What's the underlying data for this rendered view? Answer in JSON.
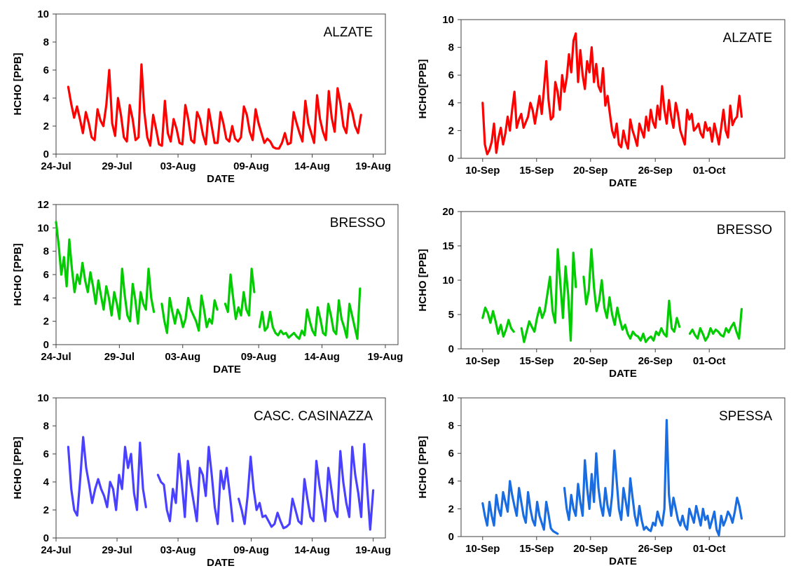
{
  "chart_data": [
    {
      "type": "line",
      "site": "ALZATE",
      "color": "#ff0000",
      "xlabel": "DATE",
      "ylabel": "HCHO [PPB]",
      "ylim": [
        0,
        10
      ],
      "yticks": [
        0,
        2,
        4,
        6,
        8,
        10
      ],
      "xlim": [
        "2010-07-24",
        "2010-08-20"
      ],
      "xticks": [
        "24-Jul",
        "29-Jul",
        "03-Aug",
        "09-Aug",
        "14-Aug",
        "19-Aug"
      ],
      "x_start": "2010-07-25",
      "x_end": "2010-08-18",
      "values": [
        4.8,
        3.6,
        2.6,
        3.4,
        2.5,
        1.5,
        3.0,
        2.2,
        1.2,
        1.0,
        3.2,
        2.4,
        2.0,
        3.5,
        6.0,
        2.2,
        1.3,
        4.0,
        2.8,
        1.2,
        0.9,
        3.5,
        2.5,
        1.0,
        1.2,
        6.4,
        3.0,
        1.2,
        0.6,
        2.8,
        1.8,
        0.7,
        0.6,
        3.8,
        1.5,
        0.9,
        2.5,
        1.8,
        0.8,
        0.7,
        3.5,
        2.5,
        1.0,
        0.8,
        3.0,
        2.5,
        1.4,
        0.7,
        3.2,
        2.0,
        0.8,
        0.8,
        3.0,
        2.2,
        1.1,
        0.9,
        2.0,
        1.1,
        0.9,
        1.2,
        3.4,
        2.8,
        1.6,
        1.0,
        3.2,
        2.2,
        1.5,
        0.8,
        1.1,
        0.9,
        0.5,
        0.4,
        0.4,
        0.8,
        1.5,
        0.7,
        0.8,
        3.0,
        2.2,
        1.5,
        0.9,
        3.8,
        2.2,
        1.5,
        0.8,
        4.2,
        2.5,
        1.6,
        1.0,
        4.5,
        2.6,
        1.6,
        4.7,
        3.6,
        2.0,
        1.5,
        3.6,
        3.0,
        2.0,
        1.5,
        2.8
      ]
    },
    {
      "type": "line",
      "site": "ALZATE",
      "color": "#ff0000",
      "xlabel": "DATE",
      "ylabel": "HCHO[PPB]",
      "ylim": [
        0,
        10
      ],
      "yticks": [
        0,
        2,
        4,
        6,
        8,
        10
      ],
      "xlim": [
        "2010-09-08",
        "2010-10-08"
      ],
      "xticks": [
        "10-Sep",
        "15-Sep",
        "20-Sep",
        "26-Sep",
        "01-Oct"
      ],
      "x_start": "2010-09-10",
      "x_end": "2010-10-04",
      "values": [
        4.0,
        1.0,
        0.3,
        0.6,
        1.2,
        2.5,
        0.4,
        1.5,
        2.2,
        1.0,
        1.8,
        3.0,
        2.0,
        3.5,
        4.8,
        2.2,
        2.8,
        3.2,
        2.2,
        2.6,
        3.0,
        4.0,
        3.5,
        2.5,
        3.5,
        4.5,
        3.2,
        5.0,
        7.0,
        4.2,
        2.8,
        3.0,
        5.5,
        4.8,
        3.5,
        6.0,
        4.8,
        5.8,
        7.5,
        6.2,
        8.5,
        9.0,
        5.5,
        7.8,
        6.0,
        5.0,
        7.0,
        6.2,
        8.0,
        5.5,
        6.8,
        5.2,
        4.8,
        6.5,
        3.8,
        4.5,
        3.2,
        2.0,
        1.5,
        2.5,
        1.0,
        0.8,
        2.0,
        1.2,
        0.7,
        2.8,
        2.0,
        1.5,
        0.9,
        2.5,
        2.0,
        1.5,
        3.0,
        2.0,
        3.5,
        2.6,
        2.2,
        3.8,
        2.8,
        5.2,
        3.5,
        2.5,
        4.2,
        3.0,
        2.2,
        4.0,
        3.2,
        2.0,
        1.5,
        1.0,
        3.5,
        2.8,
        3.2,
        2.0,
        2.2,
        2.5,
        1.8,
        1.5,
        2.6,
        2.0,
        2.2,
        1.2,
        2.5,
        1.8,
        1.0,
        2.2,
        3.5,
        2.0,
        1.5,
        3.8,
        2.4,
        2.8,
        3.0,
        4.5,
        3.0
      ]
    },
    {
      "type": "line",
      "site": "BRESSO",
      "color": "#00cc00",
      "xlabel": "DATE",
      "ylabel": "HCHO [PPB]",
      "ylim": [
        0,
        12
      ],
      "yticks": [
        0,
        2,
        4,
        6,
        8,
        10,
        12
      ],
      "xlim": [
        "2010-07-24",
        "2010-08-20"
      ],
      "xticks": [
        "24-Jul",
        "29-Jul",
        "03-Aug",
        "09-Aug",
        "14-Aug",
        "19-Aug"
      ],
      "x_start": "2010-07-24",
      "x_end": "2010-08-17",
      "values": [
        10.5,
        8.5,
        6.0,
        7.5,
        5.0,
        9.0,
        6.5,
        4.5,
        6.0,
        5.2,
        7.0,
        5.5,
        4.5,
        6.2,
        5.0,
        3.5,
        5.5,
        4.2,
        3.0,
        5.0,
        4.0,
        2.5,
        4.5,
        3.5,
        2.2,
        6.5,
        4.2,
        2.5,
        2.0,
        5.2,
        3.8,
        1.8,
        4.5,
        3.5,
        3.0,
        6.5,
        4.0,
        2.8,
        null,
        null,
        3.5,
        2.0,
        1.0,
        4.0,
        2.8,
        1.8,
        3.0,
        2.5,
        1.5,
        2.2,
        4.0,
        3.0,
        2.5,
        2.0,
        1.2,
        4.2,
        3.0,
        1.5,
        2.2,
        1.8,
        3.8,
        3.0,
        null,
        null,
        3.5,
        2.8,
        6.0,
        4.0,
        2.2,
        3.2,
        2.5,
        4.5,
        3.0,
        2.5,
        6.5,
        4.5,
        null,
        1.5,
        2.8,
        1.2,
        1.5,
        2.8,
        1.5,
        1.0,
        0.8,
        1.2,
        0.9,
        1.0,
        0.6,
        0.8,
        1.0,
        0.7,
        0.5,
        1.2,
        0.8,
        3.0,
        2.0,
        1.2,
        0.8,
        3.2,
        2.2,
        1.0,
        0.8,
        3.5,
        2.5,
        1.2,
        0.9,
        3.8,
        2.2,
        1.5,
        0.6,
        3.5,
        2.5,
        1.5,
        0.5,
        4.8
      ]
    },
    {
      "type": "line",
      "site": "BRESSO",
      "color": "#00cc00",
      "xlabel": "DATE",
      "ylabel": "HCHO [PPB]",
      "ylim": [
        0,
        20
      ],
      "yticks": [
        0,
        5,
        10,
        15,
        20
      ],
      "xlim": [
        "2010-09-08",
        "2010-10-08"
      ],
      "xticks": [
        "10-Sep",
        "15-Sep",
        "20-Sep",
        "26-Sep",
        "01-Oct"
      ],
      "x_start": "2010-09-10",
      "x_end": "2010-10-04",
      "values": [
        4.5,
        6.0,
        5.2,
        3.8,
        5.5,
        4.0,
        2.2,
        3.5,
        1.8,
        2.8,
        4.2,
        3.0,
        2.5,
        null,
        null,
        3.0,
        1.0,
        2.5,
        4.0,
        3.2,
        2.5,
        4.5,
        6.0,
        4.5,
        5.5,
        8.0,
        10.5,
        5.5,
        3.8,
        14.5,
        9.5,
        4.5,
        12.0,
        8.0,
        1.2,
        14.0,
        9.0,
        null,
        null,
        10.5,
        6.5,
        8.5,
        14.5,
        9.0,
        5.5,
        7.0,
        10.0,
        6.0,
        4.5,
        7.5,
        5.0,
        3.5,
        6.0,
        4.2,
        2.8,
        3.5,
        2.2,
        1.5,
        2.5,
        2.0,
        1.8,
        1.2,
        2.2,
        1.0,
        1.5,
        1.8,
        1.2,
        2.5,
        2.0,
        3.0,
        2.2,
        1.8,
        7.0,
        3.0,
        2.5,
        4.5,
        3.2,
        null,
        null,
        null,
        2.2,
        2.8,
        2.0,
        1.5,
        3.0,
        2.2,
        1.2,
        1.8,
        3.0,
        2.2,
        2.8,
        2.5,
        2.0,
        1.8,
        3.0,
        2.4,
        3.2,
        3.8,
        2.5,
        1.5,
        5.8
      ]
    },
    {
      "type": "line",
      "site": "CASC. CASINAZZA",
      "color": "#4a40ff",
      "xlabel": "DATE",
      "ylabel": "HCHO [PPB]",
      "ylim": [
        0,
        10
      ],
      "yticks": [
        0,
        2,
        4,
        6,
        8,
        10
      ],
      "xlim": [
        "2010-07-24",
        "2010-08-20"
      ],
      "xticks": [
        "24-Jul",
        "29-Jul",
        "03-Aug",
        "09-Aug",
        "14-Aug",
        "19-Aug"
      ],
      "x_start": "2010-07-25",
      "x_end": "2010-08-19",
      "values": [
        6.5,
        3.5,
        2.0,
        1.6,
        4.2,
        7.2,
        5.0,
        3.8,
        2.5,
        3.5,
        4.2,
        3.5,
        3.0,
        2.2,
        4.0,
        3.5,
        2.0,
        4.5,
        3.5,
        6.5,
        5.0,
        6.0,
        3.2,
        2.0,
        6.8,
        3.5,
        2.2,
        null,
        null,
        null,
        4.5,
        4.0,
        3.8,
        2.0,
        1.2,
        3.5,
        2.5,
        6.0,
        4.0,
        1.5,
        5.5,
        3.8,
        2.5,
        1.2,
        5.0,
        4.5,
        3.0,
        6.5,
        4.5,
        2.2,
        1.0,
        4.8,
        3.5,
        5.0,
        3.2,
        1.2,
        null,
        2.8,
        2.0,
        1.0,
        3.0,
        5.8,
        3.5,
        2.0,
        2.5,
        1.5,
        1.6,
        1.2,
        0.8,
        1.0,
        1.8,
        1.2,
        0.7,
        0.8,
        1.0,
        2.8,
        2.0,
        1.2,
        1.0,
        4.2,
        2.8,
        1.5,
        1.2,
        5.5,
        3.8,
        2.5,
        1.2,
        5.0,
        3.5,
        2.0,
        1.5,
        6.2,
        4.0,
        2.5,
        1.5,
        6.5,
        4.5,
        3.2,
        1.5,
        6.7,
        3.5,
        0.6,
        3.4
      ]
    },
    {
      "type": "line",
      "site": "SPESSA",
      "color": "#1a6de0",
      "xlabel": "DATE",
      "ylabel": "HCHO [PPB]",
      "ylim": [
        0,
        10
      ],
      "yticks": [
        0,
        2,
        4,
        6,
        8,
        10
      ],
      "xlim": [
        "2010-09-08",
        "2010-10-08"
      ],
      "xticks": [
        "10-Sep",
        "15-Sep",
        "20-Sep",
        "26-Sep",
        "01-Oct"
      ],
      "x_start": "2010-09-10",
      "x_end": "2010-10-04",
      "values": [
        2.4,
        1.5,
        0.8,
        2.5,
        1.5,
        0.8,
        3.0,
        2.0,
        1.5,
        3.2,
        2.5,
        1.8,
        4.0,
        3.0,
        2.2,
        1.5,
        3.5,
        2.5,
        1.5,
        1.0,
        3.2,
        2.0,
        1.2,
        0.8,
        2.5,
        1.5,
        1.0,
        0.5,
        2.5,
        1.6,
        0.6,
        0.4,
        0.3,
        0.2,
        null,
        null,
        3.5,
        2.0,
        1.2,
        3.0,
        2.0,
        1.5,
        3.8,
        2.5,
        1.5,
        5.5,
        3.5,
        2.0,
        4.5,
        2.5,
        6.0,
        3.5,
        2.2,
        1.5,
        3.5,
        2.2,
        1.5,
        3.0,
        6.2,
        4.0,
        2.0,
        1.2,
        3.5,
        2.5,
        1.5,
        4.2,
        2.8,
        1.5,
        0.8,
        2.2,
        1.2,
        0.5,
        0.7,
        0.5,
        0.4,
        1.0,
        0.8,
        1.8,
        1.2,
        0.8,
        2.0,
        8.4,
        3.0,
        1.5,
        2.8,
        2.0,
        1.2,
        0.8,
        1.5,
        0.8,
        0.5,
        2.0,
        1.5,
        1.0,
        2.2,
        1.5,
        0.8,
        2.0,
        1.2,
        1.5,
        0.6,
        1.2,
        1.8,
        0.5,
        0.1,
        1.5,
        0.8,
        1.2,
        1.8,
        1.5,
        1.0,
        1.8,
        2.8,
        2.2,
        1.3
      ]
    }
  ]
}
